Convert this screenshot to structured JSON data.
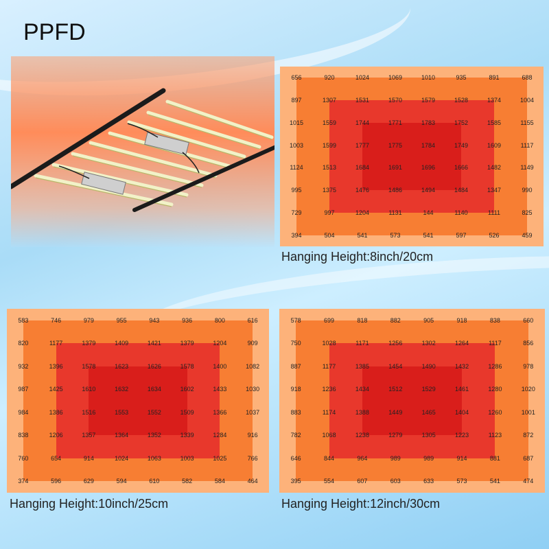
{
  "title": "PPFD",
  "colors": {
    "ring0": "#fdb27a",
    "ring1": "#f77e33",
    "ring2": "#e8382c",
    "ring3": "#d91e1b"
  },
  "chart_data": [
    {
      "type": "heatmap",
      "title": "Hanging Height:8inch/20cm",
      "values": [
        [
          656,
          920,
          1024,
          1069,
          1010,
          935,
          891,
          688
        ],
        [
          897,
          1307,
          1531,
          1570,
          1579,
          1528,
          1374,
          1004
        ],
        [
          1015,
          1559,
          1744,
          1771,
          1783,
          1752,
          1585,
          1155
        ],
        [
          1003,
          1599,
          1777,
          1775,
          1784,
          1749,
          1609,
          1117
        ],
        [
          1124,
          1513,
          1684,
          1691,
          1696,
          1666,
          1482,
          1149
        ],
        [
          995,
          1375,
          1476,
          1486,
          1494,
          1484,
          1347,
          990
        ],
        [
          729,
          997,
          1204,
          1131,
          144,
          1140,
          1111,
          825
        ],
        [
          394,
          504,
          541,
          573,
          541,
          597,
          526,
          459
        ]
      ]
    },
    {
      "type": "heatmap",
      "title": "Hanging Height:10inch/25cm",
      "values": [
        [
          583,
          746,
          979,
          955,
          943,
          936,
          800,
          616
        ],
        [
          820,
          1177,
          1379,
          1409,
          1421,
          1379,
          1204,
          909
        ],
        [
          932,
          1396,
          1578,
          1623,
          1626,
          1578,
          1400,
          1082
        ],
        [
          987,
          1425,
          1610,
          1632,
          1634,
          1602,
          1433,
          1030
        ],
        [
          984,
          1386,
          1516,
          1553,
          1552,
          1509,
          1366,
          1037
        ],
        [
          838,
          1206,
          1357,
          1364,
          1352,
          1339,
          1284,
          916
        ],
        [
          760,
          654,
          914,
          1024,
          1063,
          1003,
          1025,
          766
        ],
        [
          374,
          596,
          629,
          594,
          610,
          582,
          584,
          464
        ]
      ]
    },
    {
      "type": "heatmap",
      "title": "Hanging Height:12inch/30cm",
      "values": [
        [
          578,
          699,
          818,
          882,
          905,
          918,
          838,
          660
        ],
        [
          750,
          1028,
          1171,
          1256,
          1302,
          1264,
          1117,
          856
        ],
        [
          887,
          1177,
          1385,
          1454,
          1490,
          1432,
          1286,
          978
        ],
        [
          918,
          1236,
          1434,
          1512,
          1529,
          1461,
          1280,
          1020
        ],
        [
          883,
          1174,
          1388,
          1449,
          1465,
          1404,
          1260,
          1001
        ],
        [
          782,
          1068,
          1238,
          1279,
          1305,
          1223,
          1123,
          872
        ],
        [
          646,
          844,
          964,
          989,
          989,
          914,
          881,
          687
        ],
        [
          395,
          554,
          607,
          603,
          633,
          573,
          541,
          474
        ]
      ]
    }
  ]
}
